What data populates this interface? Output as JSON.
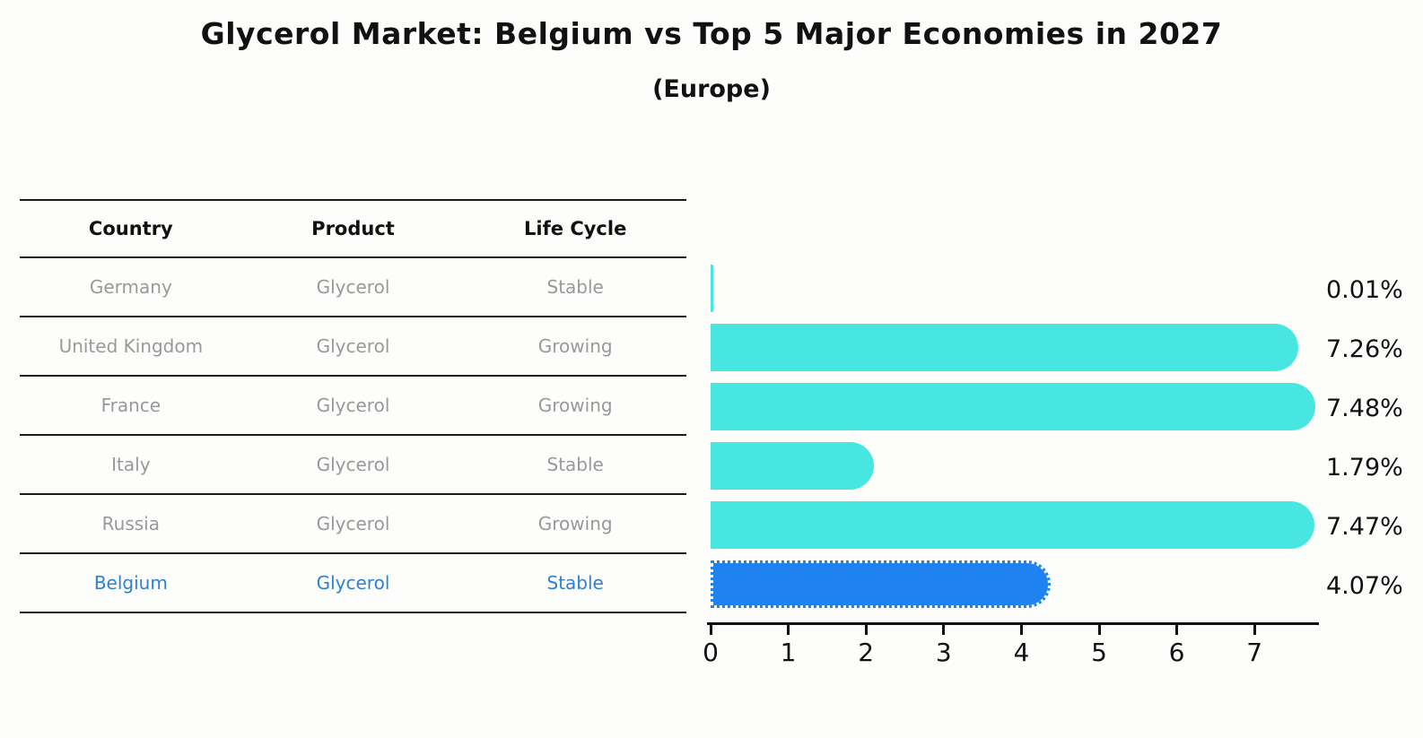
{
  "title": "Glycerol Market: Belgium vs Top 5 Major Economies in 2027",
  "subtitle": "(Europe)",
  "table": {
    "headers": [
      "Country",
      "Product",
      "Life Cycle"
    ],
    "rows": [
      {
        "country": "Germany",
        "product": "Glycerol",
        "life_cycle": "Stable",
        "highlight": false
      },
      {
        "country": "United Kingdom",
        "product": "Glycerol",
        "life_cycle": "Growing",
        "highlight": false
      },
      {
        "country": "France",
        "product": "Glycerol",
        "life_cycle": "Growing",
        "highlight": false
      },
      {
        "country": "Italy",
        "product": "Glycerol",
        "life_cycle": "Stable",
        "highlight": false
      },
      {
        "country": "Russia",
        "product": "Glycerol",
        "life_cycle": "Growing",
        "highlight": false
      },
      {
        "country": "Belgium",
        "product": "Glycerol",
        "life_cycle": "Stable",
        "highlight": true
      }
    ]
  },
  "chart_data": {
    "type": "bar",
    "orientation": "horizontal",
    "title": "Glycerol Market: Belgium vs Top 5 Major Economies in 2027",
    "subtitle": "(Europe)",
    "categories": [
      "Germany",
      "United Kingdom",
      "France",
      "Italy",
      "Russia",
      "Belgium"
    ],
    "values": [
      0.01,
      7.26,
      7.48,
      1.79,
      7.47,
      4.07
    ],
    "value_labels": [
      "0.01%",
      "7.26%",
      "7.48%",
      "1.79%",
      "7.47%",
      "4.07%"
    ],
    "xticks": [
      0,
      1,
      2,
      3,
      4,
      5,
      6,
      7
    ],
    "xlim": [
      0,
      7.85
    ],
    "grid": false,
    "legend": "none",
    "bar_color": "#47e6e0",
    "highlight_category": "Belgium",
    "highlight_bar_color": "#1e82f0",
    "highlight_text_color": "#2e80d0",
    "row_text_color": "#999999"
  }
}
